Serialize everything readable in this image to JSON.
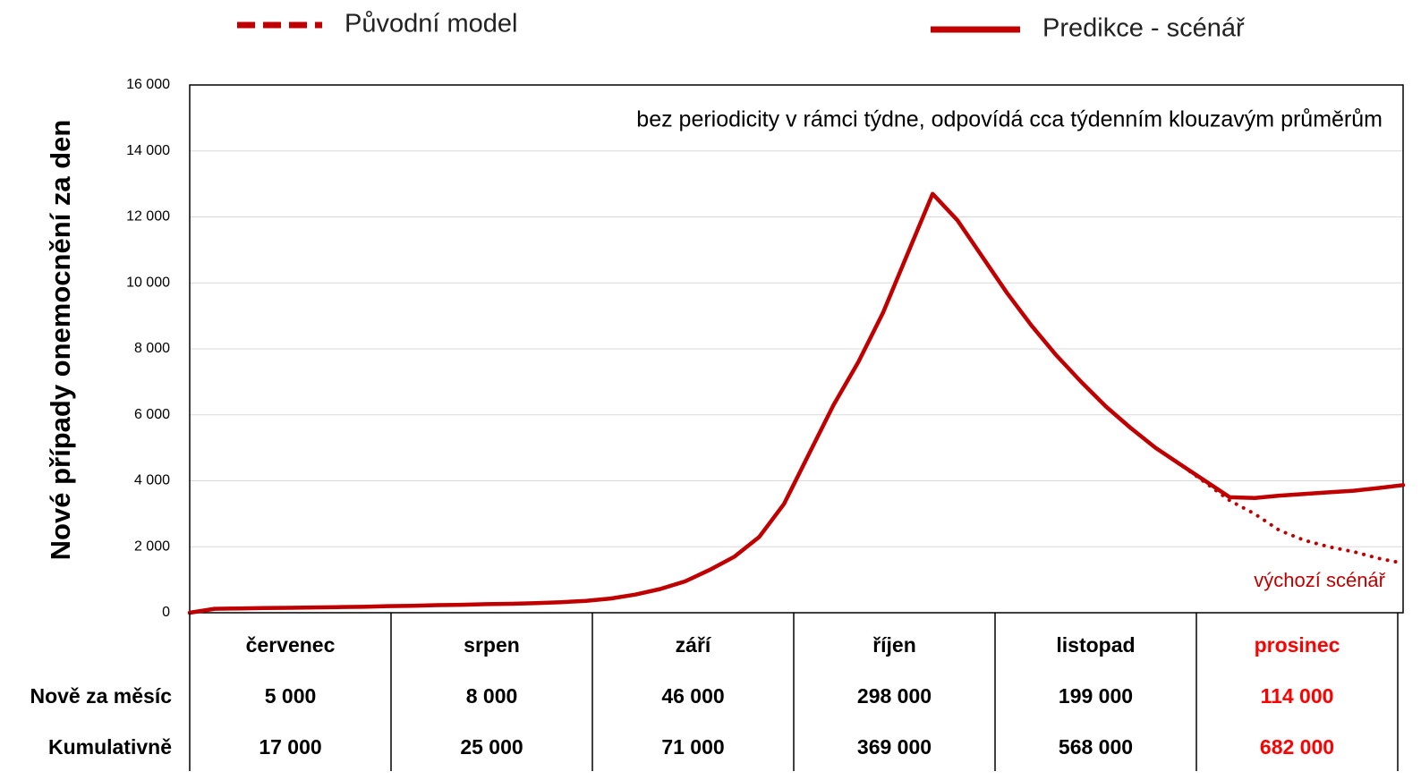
{
  "chart_data": {
    "type": "line",
    "y_label": "Nové případy onemocnění za den",
    "annotations": [
      "bez periodicity v rámci týdne, odpovídá cca týdenním klouzavým průměrům",
      "výchozí scénář"
    ],
    "ylim": [
      0,
      16000
    ],
    "yticks": [
      0,
      {
        "value": 2000,
        "label": "2 000"
      },
      {
        "value": 4000,
        "label": "4 000"
      },
      {
        "value": 6000,
        "label": "6 000"
      },
      {
        "value": 8000,
        "label": "8 000"
      },
      {
        "value": 10000,
        "label": "10 000"
      },
      {
        "value": 12000,
        "label": "12 000"
      },
      {
        "value": 14000,
        "label": "14 000"
      },
      {
        "value": 16000,
        "label": "16 000"
      }
    ],
    "grid": true,
    "series": [
      {
        "name": "Původní model",
        "color": "#c00000",
        "style": "dashed",
        "values": [
          0,
          120,
          130,
          140,
          150,
          160,
          170,
          180,
          200,
          210,
          230,
          240,
          260,
          270,
          290,
          320,
          360,
          430,
          550,
          720,
          950,
          1300,
          1700,
          2300,
          3300,
          4800,
          6300,
          7600,
          9100,
          10900,
          12700,
          11900,
          10800,
          9700,
          8700,
          7800,
          7000,
          6250,
          5600,
          5000,
          4500,
          3950,
          3400,
          3000,
          2500,
          2200,
          2000,
          1850,
          1650,
          1500
        ]
      },
      {
        "name": "Predikce - scénář",
        "color": "#c00000",
        "style": "solid",
        "values": [
          0,
          120,
          130,
          140,
          150,
          160,
          170,
          180,
          200,
          210,
          230,
          240,
          260,
          270,
          290,
          320,
          360,
          430,
          550,
          720,
          950,
          1300,
          1700,
          2300,
          3300,
          4800,
          6300,
          7600,
          9100,
          10900,
          12700,
          11900,
          10800,
          9700,
          8700,
          7800,
          7000,
          6250,
          5600,
          5000,
          4500,
          4000,
          3500,
          3480,
          3550,
          3600,
          3650,
          3700,
          3780,
          3870
        ]
      }
    ],
    "table": {
      "columns": [
        "červenec",
        "srpen",
        "září",
        "říjen",
        "listopad",
        "prosinec"
      ],
      "highlight_color": "#ff0000",
      "highlight_column": 5,
      "rows": [
        {
          "label": "Nově za měsíc",
          "values": [
            "5 000",
            "8 000",
            "46 000",
            "298 000",
            "199 000",
            "114 000"
          ]
        },
        {
          "label": "Kumulativně",
          "values": [
            "17 000",
            "25 000",
            "71 000",
            "369 000",
            "568 000",
            "682 000"
          ]
        }
      ]
    }
  }
}
